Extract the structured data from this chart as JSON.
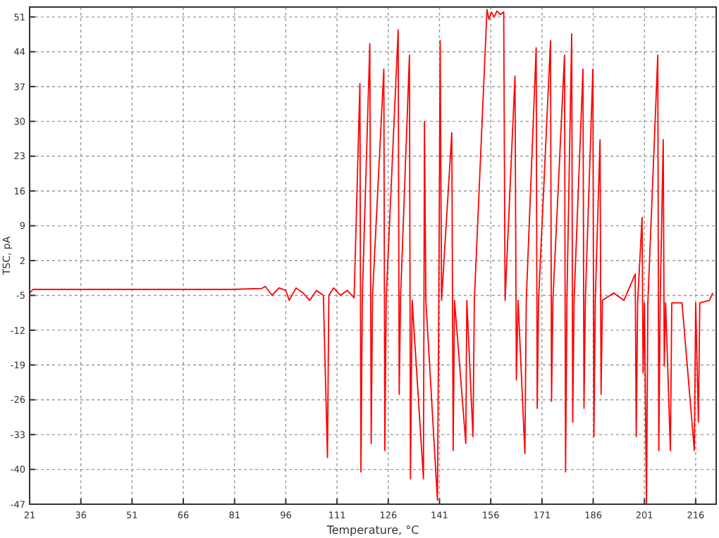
{
  "chart_data": {
    "type": "line",
    "xlabel": "Temperature, °C",
    "ylabel": "TSC, pA",
    "xlim": [
      21,
      222
    ],
    "ylim": [
      -47,
      53
    ],
    "xticks": [
      21,
      36,
      51,
      66,
      81,
      96,
      111,
      126,
      141,
      156,
      171,
      186,
      201,
      216
    ],
    "yticks": [
      -47,
      -40,
      -33,
      -26,
      -19,
      -12,
      -5,
      2,
      9,
      16,
      23,
      30,
      37,
      44,
      51
    ],
    "grid": true,
    "marker": "none",
    "line_style": "solid",
    "series": [
      {
        "color": "#ff0000",
        "x": [
          21,
          22,
          40,
          60,
          80,
          89,
          90,
          92,
          94,
          96,
          97,
          99,
          101,
          103,
          105,
          107,
          108.2,
          108.6,
          110,
          112,
          114,
          116,
          117.7,
          118,
          118.4,
          120.6,
          121,
          121.4,
          124.7,
          125,
          125.4,
          128.9,
          129.2,
          129.6,
          132.2,
          132.5,
          133,
          136.3,
          136.6,
          137,
          140.4,
          140.8,
          141.2,
          141.6,
          144.6,
          145,
          145.4,
          148.7,
          149,
          150.8,
          151.2,
          154.9,
          155.5,
          156.2,
          157,
          157.8,
          158.8,
          159.8,
          160.2,
          163.1,
          163.5,
          164,
          166,
          166.4,
          169.3,
          169.6,
          170,
          173.5,
          173.8,
          174.2,
          177.6,
          177.9,
          178.3,
          179.7,
          180,
          180.4,
          183,
          183.3,
          183.7,
          185.9,
          186.2,
          186.6,
          188,
          188.3,
          188.7,
          192,
          195,
          198.3,
          198.6,
          199,
          200.3,
          200.6,
          201,
          201.6,
          202,
          204.9,
          205.2,
          205.6,
          206.5,
          206.8,
          207.2,
          208.6,
          209,
          212,
          215.6,
          216,
          216.8,
          217.2,
          220,
          221
        ],
        "values": [
          -4.5,
          -3.8,
          -3.8,
          -3.8,
          -3.8,
          -3.6,
          -3.2,
          -5,
          -3.5,
          -4,
          -6,
          -3.5,
          -4.5,
          -6,
          -4,
          -5,
          -37.6,
          -5,
          -3.5,
          -5,
          -4,
          -5.5,
          37.6,
          -40.5,
          -5.5,
          45.6,
          -34.8,
          -5,
          40.5,
          -36.2,
          -5.5,
          48.4,
          -24.9,
          -5.5,
          43.3,
          -41.9,
          -6,
          -41.9,
          30,
          -6,
          -46.2,
          -6,
          46.2,
          -6,
          27.7,
          -36.2,
          -6,
          -34.8,
          -6,
          -33.4,
          -6,
          52.5,
          50.5,
          52,
          51,
          52.2,
          51.5,
          52,
          -6,
          39.1,
          -22,
          -6,
          -36.8,
          -6,
          44.8,
          -27.7,
          -6,
          46.2,
          -26.3,
          -6,
          43.3,
          -40.5,
          -6,
          47.6,
          -30.5,
          -6,
          40.5,
          -27.7,
          -6,
          40.5,
          -33.4,
          -6,
          26.3,
          -24.9,
          -6,
          -4.5,
          -6,
          -0.7,
          -33.4,
          -6.5,
          10.7,
          -20.6,
          -6.5,
          -47,
          -6.5,
          43.3,
          -36.2,
          -6.5,
          26.3,
          -19.2,
          -6.5,
          -36.2,
          -6.5,
          -6.5,
          -36.2,
          -6.5,
          -30.5,
          -6.5,
          -6,
          -4.5
        ]
      }
    ]
  }
}
